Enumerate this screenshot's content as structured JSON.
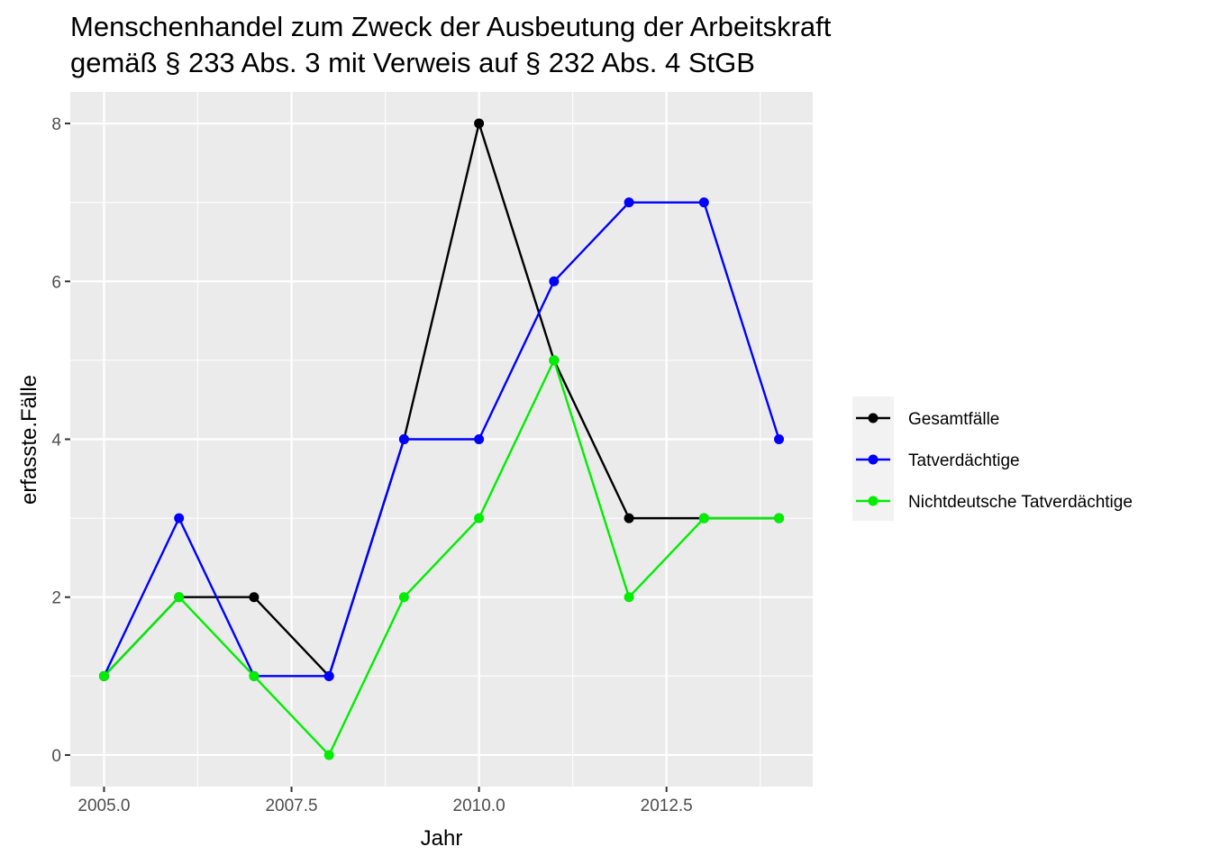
{
  "chart_data": {
    "type": "line",
    "title_line1": "Menschenhandel zum Zweck der Ausbeutung der Arbeitskraft",
    "title_line2": "gemäß § 233 Abs. 3 mit Verweis auf § 232 Abs. 4 StGB",
    "xlabel": "Jahr",
    "ylabel": "erfasste.Fälle",
    "xlim": [
      2004.55,
      2014.45
    ],
    "ylim": [
      -0.4,
      8.4
    ],
    "x_ticks": [
      2005.0,
      2007.5,
      2010.0,
      2012.5
    ],
    "x_tick_labels": [
      "2005.0",
      "2007.5",
      "2010.0",
      "2012.5"
    ],
    "y_ticks": [
      0,
      2,
      4,
      6,
      8
    ],
    "y_tick_labels": [
      "0",
      "2",
      "4",
      "6",
      "8"
    ],
    "grid": true,
    "legend_position": "right",
    "x": [
      2005,
      2006,
      2007,
      2008,
      2009,
      2010,
      2011,
      2012,
      2013,
      2014
    ],
    "series": [
      {
        "name": "Gesamtfälle",
        "color": "#000000",
        "values": [
          1,
          2,
          2,
          1,
          4,
          8,
          5,
          3,
          3,
          3
        ]
      },
      {
        "name": "Tatverdächtige",
        "color": "#0000ff",
        "values": [
          1,
          3,
          1,
          1,
          4,
          4,
          6,
          7,
          7,
          4
        ]
      },
      {
        "name": "Nichtdeutsche Tatverdächtige",
        "color": "#00ee00",
        "values": [
          1,
          2,
          1,
          0,
          2,
          3,
          5,
          2,
          3,
          3
        ]
      }
    ]
  }
}
